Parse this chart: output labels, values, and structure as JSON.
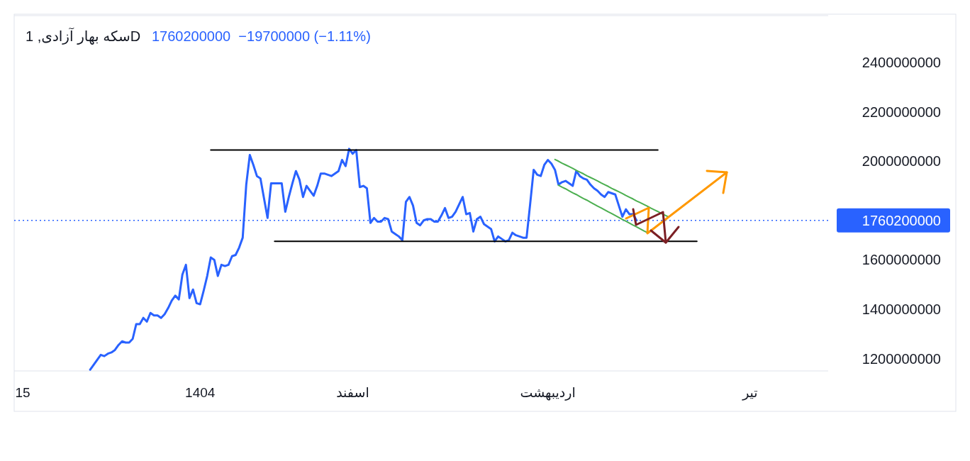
{
  "chart_data": {
    "type": "line",
    "title": "سکه بهار آزادی, 1D",
    "subtitle": "1760200000  −19700000 (−1.11%)",
    "categories": [
      null,
      null,
      "15",
      null,
      null,
      null,
      null,
      null,
      null,
      null,
      null,
      null,
      null,
      null,
      null,
      null,
      null,
      null,
      null,
      null,
      null,
      null,
      null,
      null,
      null,
      null,
      null,
      null,
      null,
      null,
      null,
      null,
      null,
      null,
      null,
      null,
      null,
      null,
      null,
      null,
      null,
      null,
      null,
      null,
      null,
      null,
      null,
      null,
      null,
      null,
      null,
      null,
      "1404",
      null,
      null,
      null,
      null,
      null,
      null,
      null,
      null,
      null,
      null,
      null,
      null,
      null,
      null,
      null,
      null,
      null,
      null,
      null,
      null,
      null,
      null,
      null,
      null,
      null,
      null,
      null,
      null,
      null,
      null,
      null,
      null,
      null,
      null,
      null,
      null,
      null,
      null,
      null,
      null,
      null,
      null,
      "اسفند",
      null,
      null,
      null,
      null,
      null,
      null,
      null,
      null,
      null,
      null,
      null,
      null,
      null,
      null,
      null,
      null,
      null,
      null,
      null,
      null,
      null,
      null,
      null,
      null,
      null,
      null,
      null,
      null,
      null,
      null,
      null,
      null,
      null,
      null,
      null,
      null,
      null,
      null,
      null,
      null,
      null,
      null,
      null,
      null,
      null,
      null,
      null,
      null,
      null,
      null,
      null,
      null,
      null,
      null,
      "اردیبهشت",
      null,
      null,
      null,
      null,
      null,
      null,
      null,
      null,
      null,
      null,
      null,
      null,
      null,
      null,
      null,
      null,
      null,
      null,
      null,
      null,
      null,
      null,
      null,
      null,
      null,
      null,
      null,
      null,
      null,
      null,
      null,
      null,
      null,
      null,
      null,
      null,
      null,
      null,
      null,
      null,
      null,
      null,
      null,
      null,
      null,
      null,
      null,
      null,
      null,
      null,
      null,
      null,
      null,
      null,
      null,
      null,
      "تیر",
      null,
      null,
      null,
      null,
      null,
      null,
      null,
      null,
      null,
      null,
      null,
      null,
      null,
      null,
      null,
      null,
      null,
      null,
      null,
      null,
      null,
      null
    ],
    "ylim": [
      1150000000,
      2590000000
    ],
    "yticks": [
      1200000000,
      1400000000,
      1600000000,
      2000000000,
      2200000000,
      2400000000
    ],
    "grid": false,
    "ref_lines": [
      {
        "axis": "y",
        "value": 1760200000,
        "label": "1760200000",
        "color": "#2962ff",
        "line_style": "dotted"
      }
    ],
    "series": [
      {
        "color": "#2962ff",
        "values": [
          null,
          null,
          null,
          null,
          null,
          null,
          null,
          null,
          null,
          null,
          null,
          null,
          null,
          null,
          null,
          null,
          null,
          null,
          null,
          null,
          null,
          1155000000,
          1175000000,
          1195000000,
          1215000000,
          1210000000,
          1220000000,
          1225000000,
          1235000000,
          1255000000,
          1270000000,
          1265000000,
          1265000000,
          1280000000,
          1340000000,
          1340000000,
          1365000000,
          1350000000,
          1385000000,
          1375000000,
          1375000000,
          1365000000,
          1380000000,
          1405000000,
          1435000000,
          1455000000,
          1440000000,
          1540000000,
          1580000000,
          1445000000,
          1480000000,
          1425000000,
          1420000000,
          1475000000,
          1535000000,
          1610000000,
          1600000000,
          1535000000,
          1580000000,
          1575000000,
          1580000000,
          1615000000,
          1620000000,
          1650000000,
          1690000000,
          1905000000,
          2025000000,
          1985000000,
          1940000000,
          1930000000,
          1850000000,
          1770000000,
          1910000000,
          1910000000,
          1910000000,
          1910000000,
          1795000000,
          1855000000,
          1910000000,
          1960000000,
          1925000000,
          1855000000,
          1900000000,
          1880000000,
          1860000000,
          1900000000,
          1950000000,
          1950000000,
          1945000000,
          1940000000,
          1950000000,
          1960000000,
          2005000000,
          1980000000,
          2050000000,
          2030000000,
          2045000000,
          1895000000,
          1900000000,
          1890000000,
          1750000000,
          1770000000,
          1755000000,
          1755000000,
          1770000000,
          1765000000,
          1715000000,
          1705000000,
          1695000000,
          1680000000,
          1835000000,
          1855000000,
          1820000000,
          1750000000,
          1740000000,
          1760000000,
          1765000000,
          1765000000,
          1755000000,
          1755000000,
          1780000000,
          1810000000,
          1770000000,
          1775000000,
          1795000000,
          1825000000,
          1855000000,
          1785000000,
          1790000000,
          1715000000,
          1765000000,
          1775000000,
          1745000000,
          1735000000,
          1725000000,
          1675000000,
          1695000000,
          1685000000,
          1675000000,
          1680000000,
          1710000000,
          1700000000,
          1695000000,
          1690000000,
          1690000000,
          1825000000,
          1965000000,
          1945000000,
          1940000000,
          1985000000,
          2005000000,
          1990000000,
          1965000000,
          1905000000,
          1915000000,
          1920000000,
          1910000000,
          1900000000,
          1960000000,
          1940000000,
          1930000000,
          1925000000,
          1905000000,
          1890000000,
          1880000000,
          1865000000,
          1855000000,
          1875000000,
          1870000000,
          1865000000,
          1820000000,
          1775000000,
          1805000000,
          1785000000,
          1785000000,
          1760000000,
          null,
          null,
          null,
          null,
          null,
          null,
          null,
          null,
          null,
          null,
          null,
          null,
          null,
          null,
          null,
          null,
          null,
          null,
          null,
          null,
          null,
          null,
          null,
          null,
          null,
          null,
          null,
          null,
          null,
          null,
          null,
          null,
          null,
          null,
          null,
          null,
          null,
          null,
          null,
          null,
          null,
          null,
          null,
          null,
          null,
          null,
          null,
          null,
          null,
          null,
          null,
          null,
          null,
          null
        ]
      },
      {
        "color": "#000000",
        "values": [
          null,
          null,
          null,
          null,
          null,
          null,
          null,
          null,
          null,
          null,
          null,
          null,
          null,
          null,
          null,
          null,
          null,
          null,
          null,
          null,
          null,
          null,
          null,
          null,
          null,
          null,
          null,
          null,
          null,
          null,
          null,
          null,
          null,
          null,
          null,
          null,
          null,
          null,
          null,
          null,
          null,
          null,
          null,
          null,
          null,
          null,
          null,
          null,
          null,
          null,
          null,
          null,
          null,
          null,
          null,
          2045000000,
          2045000000,
          2045000000,
          2045000000,
          2045000000,
          2045000000,
          2045000000,
          2045000000,
          2045000000,
          2045000000,
          2045000000,
          2045000000,
          2045000000,
          2045000000,
          2045000000,
          2045000000,
          2045000000,
          2045000000,
          2045000000,
          2045000000,
          2045000000,
          2045000000,
          2045000000,
          2045000000,
          2045000000,
          2045000000,
          2045000000,
          2045000000,
          2045000000,
          2045000000,
          2045000000,
          2045000000,
          2045000000,
          2045000000,
          2045000000,
          2045000000,
          2045000000,
          2045000000,
          2045000000,
          2045000000,
          2045000000,
          2045000000,
          2045000000,
          2045000000,
          2045000000,
          2045000000,
          2045000000,
          2045000000,
          2045000000,
          2045000000,
          2045000000,
          2045000000,
          2045000000,
          2045000000,
          2045000000,
          2045000000,
          2045000000,
          2045000000,
          2045000000,
          2045000000,
          2045000000,
          2045000000,
          2045000000,
          2045000000,
          2045000000,
          2045000000,
          2045000000,
          2045000000,
          2045000000,
          2045000000,
          2045000000,
          2045000000,
          2045000000,
          2045000000,
          2045000000,
          2045000000,
          2045000000,
          2045000000,
          2045000000,
          2045000000,
          2045000000,
          2045000000,
          2045000000,
          2045000000,
          2045000000,
          2045000000,
          2045000000,
          2045000000,
          2045000000,
          2045000000,
          2045000000,
          2045000000,
          2045000000,
          2045000000,
          2045000000,
          2045000000,
          2045000000,
          2045000000,
          2045000000,
          2045000000,
          2045000000,
          2045000000,
          2045000000,
          2045000000,
          2045000000,
          2045000000,
          2045000000,
          2045000000,
          2045000000,
          2045000000,
          2045000000,
          2045000000,
          2045000000,
          2045000000,
          2045000000,
          2045000000,
          2045000000,
          2045000000,
          2045000000,
          2045000000,
          2045000000,
          2045000000,
          2045000000,
          2045000000,
          2045000000,
          2045000000,
          2045000000,
          null,
          null,
          null,
          null,
          null,
          null,
          null,
          null,
          null,
          null,
          null,
          null,
          null,
          null,
          null,
          null,
          null,
          null,
          null,
          null,
          null,
          null,
          null,
          null,
          null,
          null,
          null,
          null,
          null,
          null,
          null,
          null,
          null,
          null,
          null,
          null,
          null,
          null,
          null,
          null,
          null,
          null,
          null,
          null,
          null,
          null,
          null,
          null
        ]
      },
      {
        "color": "#000000",
        "values": [
          null,
          null,
          null,
          null,
          null,
          null,
          null,
          null,
          null,
          null,
          null,
          null,
          null,
          null,
          null,
          null,
          null,
          null,
          null,
          null,
          null,
          null,
          null,
          null,
          null,
          null,
          null,
          null,
          null,
          null,
          null,
          null,
          null,
          null,
          null,
          null,
          null,
          null,
          null,
          null,
          null,
          null,
          null,
          null,
          null,
          null,
          null,
          null,
          null,
          null,
          null,
          null,
          null,
          null,
          null,
          null,
          null,
          null,
          null,
          null,
          null,
          null,
          null,
          null,
          null,
          null,
          null,
          null,
          null,
          null,
          null,
          null,
          null,
          1675000000,
          1675000000,
          1675000000,
          1675000000,
          1675000000,
          1675000000,
          1675000000,
          1675000000,
          1675000000,
          1675000000,
          1675000000,
          1675000000,
          1675000000,
          1675000000,
          1675000000,
          1675000000,
          1675000000,
          1675000000,
          1675000000,
          1675000000,
          1675000000,
          1675000000,
          1675000000,
          1675000000,
          1675000000,
          1675000000,
          1675000000,
          1675000000,
          1675000000,
          1675000000,
          1675000000,
          1675000000,
          1675000000,
          1675000000,
          1675000000,
          1675000000,
          1675000000,
          1675000000,
          1675000000,
          1675000000,
          1675000000,
          1675000000,
          1675000000,
          1675000000,
          1675000000,
          1675000000,
          1675000000,
          1675000000,
          1675000000,
          1675000000,
          1675000000,
          1675000000,
          1675000000,
          1675000000,
          1675000000,
          1675000000,
          1675000000,
          1675000000,
          1675000000,
          1675000000,
          1675000000,
          1675000000,
          1675000000,
          1675000000,
          1675000000,
          1675000000,
          1675000000,
          1675000000,
          1675000000,
          1675000000,
          1675000000,
          1675000000,
          1675000000,
          1675000000,
          1675000000,
          1675000000,
          1675000000,
          1675000000,
          1675000000,
          1675000000,
          1675000000,
          1675000000,
          1675000000,
          1675000000,
          1675000000,
          1675000000,
          1675000000,
          1675000000,
          1675000000,
          1675000000,
          1675000000,
          1675000000,
          1675000000,
          1675000000,
          1675000000,
          1675000000,
          1675000000,
          1675000000,
          1675000000,
          1675000000,
          1675000000,
          1675000000,
          1675000000,
          1675000000,
          1675000000,
          1675000000,
          1675000000,
          1675000000,
          1675000000,
          1675000000,
          1675000000,
          1675000000,
          1675000000,
          1675000000,
          1675000000,
          1675000000,
          1675000000,
          1675000000,
          1675000000,
          1675000000,
          null,
          null,
          null,
          null,
          null,
          null,
          null,
          null,
          null,
          null,
          null,
          null,
          null,
          null,
          null,
          null,
          null,
          null,
          null,
          null,
          null,
          null,
          null,
          null,
          null,
          null,
          null,
          null,
          null,
          null,
          null,
          null,
          null,
          null,
          null,
          null,
          null
        ]
      },
      {
        "color": "#4caf50",
        "values": [
          null,
          null,
          null,
          null,
          null,
          null,
          null,
          null,
          null,
          null,
          null,
          null,
          null,
          null,
          null,
          null,
          null,
          null,
          null,
          null,
          null,
          null,
          null,
          null,
          null,
          null,
          null,
          null,
          null,
          null,
          null,
          null,
          null,
          null,
          null,
          null,
          null,
          null,
          null,
          null,
          null,
          null,
          null,
          null,
          null,
          null,
          null,
          null,
          null,
          null,
          null,
          null,
          null,
          null,
          null,
          null,
          null,
          null,
          null,
          null,
          null,
          null,
          null,
          null,
          null,
          null,
          null,
          null,
          null,
          null,
          null,
          null,
          null,
          null,
          null,
          null,
          null,
          null,
          null,
          null,
          null,
          null,
          null,
          null,
          null,
          null,
          null,
          null,
          null,
          null,
          null,
          null,
          null,
          null,
          null,
          null,
          null,
          null,
          null,
          null,
          null,
          null,
          null,
          null,
          null,
          null,
          null,
          null,
          null,
          null,
          null,
          null,
          null,
          null,
          null,
          null,
          null,
          null,
          null,
          null,
          null,
          null,
          null,
          null,
          null,
          null,
          null,
          null,
          null,
          null,
          null,
          null,
          null,
          null,
          null,
          null,
          null,
          null,
          null,
          null,
          null,
          null,
          null,
          null,
          null,
          null,
          null,
          null,
          null,
          null,
          null,
          null,
          2007000000,
          2000000000,
          1992000000,
          1985000000,
          1978000000,
          1971000000,
          1963000000,
          1956000000,
          1949000000,
          1941000000,
          1934000000,
          1927000000,
          1920000000,
          1912000000,
          1905000000,
          1898000000,
          1890000000,
          1883000000,
          1876000000,
          1869000000,
          1861000000,
          1854000000,
          1847000000,
          1839000000,
          1832000000,
          1825000000,
          1818000000,
          1810000000,
          1803000000,
          1796000000,
          1788000000,
          1781000000,
          1774000000,
          null,
          null,
          null,
          null,
          null,
          null,
          null,
          null,
          null,
          null,
          null,
          null,
          null,
          null,
          null,
          null,
          null,
          null,
          null,
          null,
          null,
          null,
          null,
          null,
          null,
          null,
          null,
          null,
          null,
          null,
          null,
          null,
          null,
          null,
          null,
          null,
          null,
          null,
          null,
          null,
          null,
          null,
          null,
          null,
          null
        ]
      },
      {
        "color": "#4caf50",
        "values": [
          null,
          null,
          null,
          null,
          null,
          null,
          null,
          null,
          null,
          null,
          null,
          null,
          null,
          null,
          null,
          null,
          null,
          null,
          null,
          null,
          null,
          null,
          null,
          null,
          null,
          null,
          null,
          null,
          null,
          null,
          null,
          null,
          null,
          null,
          null,
          null,
          null,
          null,
          null,
          null,
          null,
          null,
          null,
          null,
          null,
          null,
          null,
          null,
          null,
          null,
          null,
          null,
          null,
          null,
          null,
          null,
          null,
          null,
          null,
          null,
          null,
          null,
          null,
          null,
          null,
          null,
          null,
          null,
          null,
          null,
          null,
          null,
          null,
          null,
          null,
          null,
          null,
          null,
          null,
          null,
          null,
          null,
          null,
          null,
          null,
          null,
          null,
          null,
          null,
          null,
          null,
          null,
          null,
          null,
          null,
          null,
          null,
          null,
          null,
          null,
          null,
          null,
          null,
          null,
          null,
          null,
          null,
          null,
          null,
          null,
          null,
          null,
          null,
          null,
          null,
          null,
          null,
          null,
          null,
          null,
          null,
          null,
          null,
          null,
          null,
          null,
          null,
          null,
          null,
          null,
          null,
          null,
          null,
          null,
          null,
          null,
          null,
          null,
          null,
          null,
          null,
          null,
          null,
          null,
          null,
          null,
          null,
          null,
          null,
          null,
          null,
          null,
          null,
          1903000000,
          1895000000,
          1888000000,
          1880000000,
          1872000000,
          1865000000,
          1857000000,
          1849000000,
          1842000000,
          1834000000,
          1826000000,
          1818000000,
          1811000000,
          1803000000,
          1795000000,
          1788000000,
          1780000000,
          1772000000,
          1764000000,
          1757000000,
          1749000000,
          1741000000,
          1734000000,
          1726000000,
          1718000000,
          1711000000,
          null,
          null,
          null,
          null,
          null,
          null,
          null,
          null,
          null,
          null,
          null,
          null,
          null,
          null,
          null,
          null,
          null,
          null,
          null,
          null,
          null,
          null,
          null,
          null,
          null,
          null,
          null,
          null,
          null,
          null,
          null,
          null,
          null,
          null,
          null,
          null,
          null,
          null,
          null,
          null,
          null,
          null,
          null,
          null,
          null,
          null,
          null,
          null,
          null,
          null,
          null
        ]
      }
    ]
  }
}
